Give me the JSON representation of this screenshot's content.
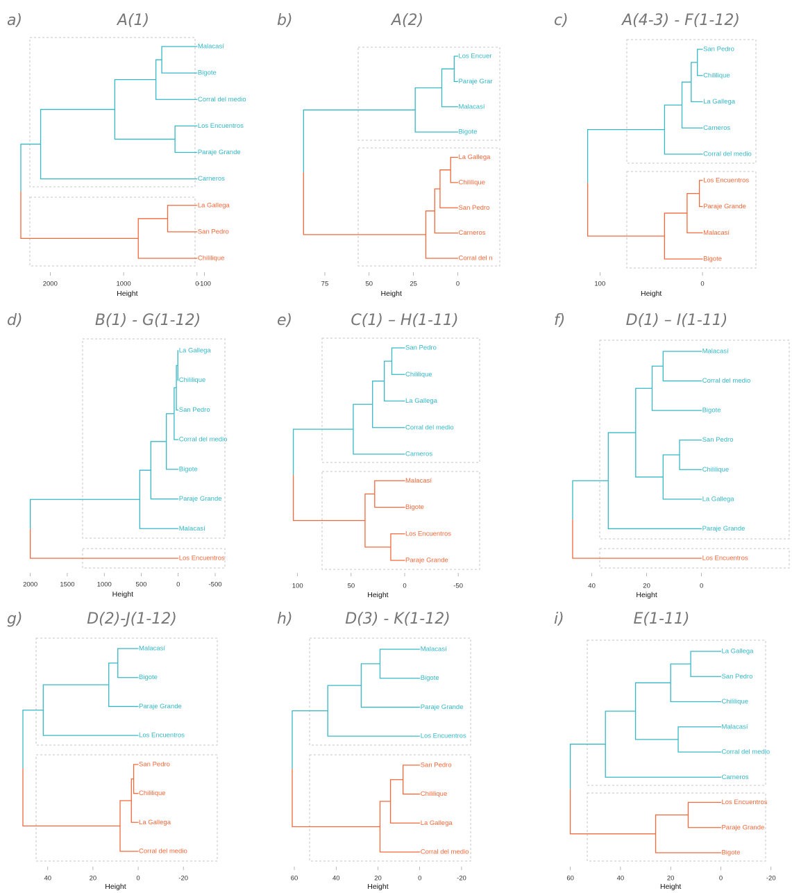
{
  "colors": {
    "cluster1": "#35b8c6",
    "cluster2": "#f2683a",
    "box": "#c4c4c4",
    "title": "#767676"
  },
  "chart_data": [
    {
      "type": "dendrogram",
      "panel": "a)",
      "title": "A(1)",
      "xlabel": "Height",
      "xlim": [
        2400,
        -200
      ],
      "ticks": [
        2000,
        1000,
        0,
        -100
      ],
      "tree": {
        "h": 2400,
        "c": [
          {
            "h": 2130,
            "c": [
              {
                "h": 1120,
                "c": [
                  {
                    "h": 560,
                    "c": [
                      {
                        "h": 480,
                        "c": [
                          {
                            "l": "Malacasí"
                          },
                          {
                            "l": "Bigote"
                          }
                        ]
                      },
                      {
                        "l": "Corral del medio"
                      }
                    ]
                  },
                  {
                    "h": 300,
                    "c": [
                      {
                        "l": "Los Encuentros"
                      },
                      {
                        "l": "Paraje Grande"
                      }
                    ]
                  }
                ]
              },
              {
                "l": "Carneros"
              }
            ]
          },
          {
            "h": 800,
            "c": [
              {
                "h": 400,
                "c": [
                  {
                    "l": "La Gallega"
                  },
                  {
                    "l": "San Pedro"
                  }
                ]
              },
              {
                "l": "Chililique"
              }
            ]
          }
        ]
      }
    },
    {
      "type": "dendrogram",
      "panel": "b)",
      "title": "A(2)",
      "xlabel": "Height",
      "xlim": [
        93,
        -10
      ],
      "ticks": [
        75,
        50,
        25,
        0
      ],
      "tree": {
        "h": 87,
        "c": [
          {
            "h": 24,
            "c": [
              {
                "h": 9,
                "c": [
                  {
                    "h": 2,
                    "c": [
                      {
                        "l": "Los Encuer"
                      },
                      {
                        "l": "Paraje Grar"
                      }
                    ]
                  },
                  {
                    "l": "Malacasí"
                  }
                ]
              },
              {
                "l": "Bigote"
              }
            ]
          },
          {
            "h": 18,
            "c": [
              {
                "h": 13,
                "c": [
                  {
                    "h": 10,
                    "c": [
                      {
                        "h": 4,
                        "c": [
                          {
                            "l": "La Gallega"
                          },
                          {
                            "l": "Chililique"
                          }
                        ]
                      },
                      {
                        "l": "San Pedro"
                      }
                    ]
                  },
                  {
                    "l": "Carneros"
                  }
                ]
              },
              {
                "l": "Corral del n"
              }
            ]
          }
        ]
      }
    },
    {
      "type": "dendrogram",
      "panel": "c)",
      "title": "A(4-3) - F(1-12)",
      "xlabel": "Height",
      "xlim": [
        130,
        -25
      ],
      "ticks": [
        100,
        0
      ],
      "tree": {
        "h": 112,
        "c": [
          {
            "h": 37,
            "c": [
              {
                "h": 20,
                "c": [
                  {
                    "h": 11,
                    "c": [
                      {
                        "h": 5,
                        "c": [
                          {
                            "l": "San Pedro"
                          },
                          {
                            "l": "Chililique"
                          }
                        ]
                      },
                      {
                        "l": "La Gallega"
                      }
                    ]
                  },
                  {
                    "l": "Carneros"
                  }
                ]
              },
              {
                "l": "Corral del medio"
              }
            ]
          },
          {
            "h": 37,
            "c": [
              {
                "h": 15,
                "c": [
                  {
                    "h": 3,
                    "c": [
                      {
                        "l": "Los Encuentros"
                      },
                      {
                        "l": "Paraje Grande"
                      }
                    ]
                  },
                  {
                    "l": "Malacasí"
                  }
                ]
              },
              {
                "l": "Bigote"
              }
            ]
          }
        ]
      }
    },
    {
      "type": "dendrogram",
      "panel": "d)",
      "title": "B(1) - G(1-12)",
      "xlabel": "Height",
      "xlim": [
        2100,
        -650
      ],
      "ticks": [
        2000,
        1500,
        1000,
        500,
        0,
        -500
      ],
      "tree": {
        "h": 2000,
        "c": [
          {
            "h": 520,
            "c": [
              {
                "h": 370,
                "c": [
                  {
                    "h": 160,
                    "c": [
                      {
                        "h": 55,
                        "c": [
                          {
                            "h": 25,
                            "c": [
                              {
                                "h": 5,
                                "c": [
                                  {
                                    "l": "La Gallega"
                                  },
                                  {
                                    "l": "Chililique"
                                  }
                                ]
                              },
                              {
                                "l": "San Pedro"
                              }
                            ]
                          },
                          {
                            "l": "Corral del medio"
                          }
                        ]
                      },
                      {
                        "l": "Bigote"
                      }
                    ]
                  },
                  {
                    "l": "Paraje Grande"
                  }
                ]
              },
              {
                "l": "Malacasí"
              }
            ]
          },
          {
            "l": "Los Encuentros"
          }
        ]
      }
    },
    {
      "type": "dendrogram",
      "panel": "e)",
      "title": "C(1) – H(1-11)",
      "xlabel": "Height",
      "xlim": [
        105,
        -70
      ],
      "ticks": [
        100,
        50,
        0,
        -50
      ],
      "tree": {
        "h": 104,
        "c": [
          {
            "h": 48,
            "c": [
              {
                "h": 30,
                "c": [
                  {
                    "h": 19,
                    "c": [
                      {
                        "h": 12,
                        "c": [
                          {
                            "l": "San Pedro"
                          },
                          {
                            "l": "Chililique"
                          }
                        ]
                      },
                      {
                        "l": "La Gallega"
                      }
                    ]
                  },
                  {
                    "l": "Corral del medio"
                  }
                ]
              },
              {
                "l": "Carneros"
              }
            ]
          },
          {
            "h": 37,
            "c": [
              {
                "h": 28,
                "c": [
                  {
                    "l": "Malacasí"
                  },
                  {
                    "l": "Bigote"
                  }
                ]
              },
              {
                "h": 13,
                "c": [
                  {
                    "l": "Los Encuentros"
                  },
                  {
                    "l": "Paraje Grande"
                  }
                ]
              }
            ]
          }
        ]
      }
    },
    {
      "type": "dendrogram",
      "panel": "f)",
      "title": "D(1) – I(1-11)",
      "xlabel": "Height",
      "xlim": [
        48,
        -32
      ],
      "ticks": [
        40,
        20,
        0
      ],
      "tree": {
        "h": 47,
        "c": [
          {
            "h": 34,
            "c": [
              {
                "h": 24,
                "c": [
                  {
                    "h": 18,
                    "c": [
                      {
                        "h": 14,
                        "c": [
                          {
                            "l": "Malacasí"
                          },
                          {
                            "l": "Corral del medio"
                          }
                        ]
                      },
                      {
                        "l": "Bigote"
                      }
                    ]
                  },
                  {
                    "h": 14,
                    "c": [
                      {
                        "h": 8,
                        "c": [
                          {
                            "l": "San Pedro"
                          },
                          {
                            "l": "Chililique"
                          }
                        ]
                      },
                      {
                        "l": "La Gallega"
                      }
                    ]
                  }
                ]
              },
              {
                "l": "Paraje Grande"
              }
            ]
          },
          {
            "l": "Los Encuentros"
          }
        ]
      }
    },
    {
      "type": "dendrogram",
      "panel": "g)",
      "title": "D(2)-J(1-12)",
      "xlabel": "Height",
      "xlim": [
        51,
        -35
      ],
      "ticks": [
        40,
        20,
        0,
        -20
      ],
      "tree": {
        "h": 51,
        "c": [
          {
            "h": 42,
            "c": [
              {
                "h": 13,
                "c": [
                  {
                    "h": 9,
                    "c": [
                      {
                        "l": "Malacasí"
                      },
                      {
                        "l": "Bigote"
                      }
                    ]
                  },
                  {
                    "l": "Paraje Grande"
                  }
                ]
              },
              {
                "l": "Los Encuentros"
              }
            ]
          },
          {
            "h": 8,
            "c": [
              {
                "h": 3,
                "c": [
                  {
                    "h": 2,
                    "c": [
                      {
                        "l": "San Pedro"
                      },
                      {
                        "l": "Chililique"
                      }
                    ]
                  },
                  {
                    "l": "La Gallega"
                  }
                ]
              },
              {
                "l": "Corral del medio"
              }
            ]
          }
        ]
      }
    },
    {
      "type": "dendrogram",
      "panel": "h)",
      "title": "D(3) - K(1-12)",
      "xlabel": "Height",
      "xlim": [
        62,
        -25
      ],
      "ticks": [
        60,
        40,
        20,
        0,
        -20
      ],
      "tree": {
        "h": 61,
        "c": [
          {
            "h": 44,
            "c": [
              {
                "h": 28,
                "c": [
                  {
                    "h": 19,
                    "c": [
                      {
                        "l": "Malacasí"
                      },
                      {
                        "l": "Bigote"
                      }
                    ]
                  },
                  {
                    "l": "Paraje Grande"
                  }
                ]
              },
              {
                "l": "Los Encuentros"
              }
            ]
          },
          {
            "h": 19,
            "c": [
              {
                "h": 14,
                "c": [
                  {
                    "h": 8,
                    "c": [
                      {
                        "l": "San Pedro"
                      },
                      {
                        "l": "Chililique"
                      }
                    ]
                  },
                  {
                    "l": "La Gallega"
                  }
                ]
              },
              {
                "l": "Corral del medio"
              }
            ]
          }
        ]
      }
    },
    {
      "type": "dendrogram",
      "panel": "i)",
      "title": "E(1-11)",
      "xlabel": "Height",
      "xlim": [
        61,
        -22
      ],
      "ticks": [
        60,
        40,
        20,
        0,
        -20
      ],
      "tree": {
        "h": 60,
        "c": [
          {
            "h": 46,
            "c": [
              {
                "h": 34,
                "c": [
                  {
                    "h": 20,
                    "c": [
                      {
                        "h": 12,
                        "c": [
                          {
                            "l": "La Gallega"
                          },
                          {
                            "l": "San Pedro"
                          }
                        ]
                      },
                      {
                        "l": "Chililique"
                      }
                    ]
                  },
                  {
                    "h": 17,
                    "c": [
                      {
                        "l": "Malacasí"
                      },
                      {
                        "l": "Corral del medio"
                      }
                    ]
                  }
                ]
              },
              {
                "l": "Carneros"
              }
            ]
          },
          {
            "h": 26,
            "c": [
              {
                "h": 13,
                "c": [
                  {
                    "l": "Los Encuentros"
                  },
                  {
                    "l": "Paraje Grande"
                  }
                ]
              },
              {
                "l": "Bigote"
              }
            ]
          }
        ]
      }
    }
  ]
}
